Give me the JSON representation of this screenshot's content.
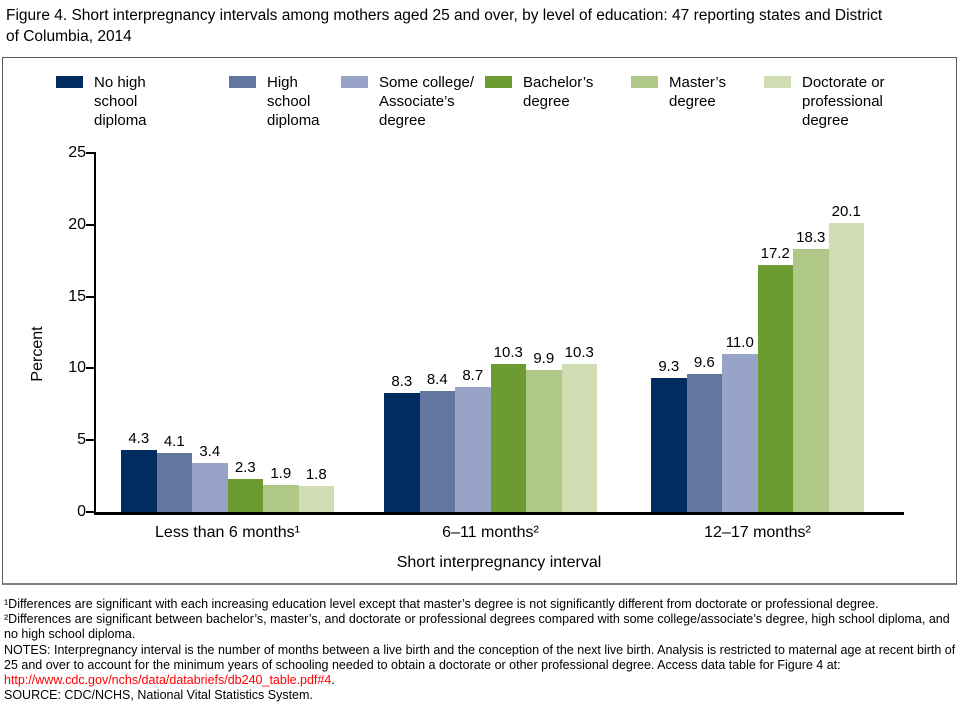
{
  "title": "Figure 4. Short interpregnancy intervals among mothers aged 25 and over, by level of education: 47 reporting states and District of Columbia, 2014",
  "chart_data": {
    "type": "bar",
    "title": "Figure 4. Short interpregnancy intervals among mothers aged 25 and over, by level of education: 47 reporting states and District of Columbia, 2014",
    "categories": [
      "Less than 6 months¹",
      "6–11 months²",
      "12–17 months²"
    ],
    "series": [
      {
        "name": "No high school diploma",
        "color": "#002C5F",
        "values": [
          4.3,
          8.3,
          9.3
        ]
      },
      {
        "name": "High school diploma",
        "color": "#61779F",
        "values": [
          4.1,
          8.4,
          9.6
        ]
      },
      {
        "name": "Some college/Associate’s degree",
        "legend_label": "Some college/\nAssociate’s degree",
        "color": "#98A4C7",
        "values": [
          3.4,
          8.7,
          11.0
        ]
      },
      {
        "name": "Bachelor’s degree",
        "color": "#6B9B31",
        "values": [
          2.3,
          10.3,
          17.2
        ]
      },
      {
        "name": "Master’s degree",
        "color": "#AFC787",
        "values": [
          1.9,
          9.9,
          18.3
        ]
      },
      {
        "name": "Doctorate or professional degree",
        "color": "#D0DDB3",
        "values": [
          1.8,
          10.3,
          20.1
        ]
      }
    ],
    "xlabel": "Short interpregnancy interval",
    "ylabel": "Percent",
    "ylim": [
      0,
      25
    ],
    "yticks": [
      0,
      5,
      10,
      15,
      20,
      25
    ],
    "value_label_decimals": 1,
    "grid": false,
    "legend_position": "top"
  },
  "footnotes": [
    "¹Differences are significant with each increasing education level except that master’s degree is not significantly different from doctorate or professional degree.",
    "²Differences are significant between bachelor’s, master’s, and doctorate or professional degrees compared with some college/associate’s degree, high school diploma, and no high school diploma."
  ],
  "notes": {
    "prefix": "NOTES: Interpregnancy interval is the number of months between a live birth and the conception of the next live birth. Analysis is restricted to maternal age at recent birth of 25 and over to account for the minimum years of schooling needed to obtain a doctorate or other professional degree. Access data table for Figure 4 at: ",
    "link_text": "http://www.cdc.gov/nchs/data/databriefs/db240_table.pdf#4",
    "suffix": "."
  },
  "source": "SOURCE: CDC/NCHS, National Vital Statistics System.",
  "colors": {
    "link": "#FF0000",
    "axis": "#000000",
    "frame_border": "#5A5A5A"
  }
}
